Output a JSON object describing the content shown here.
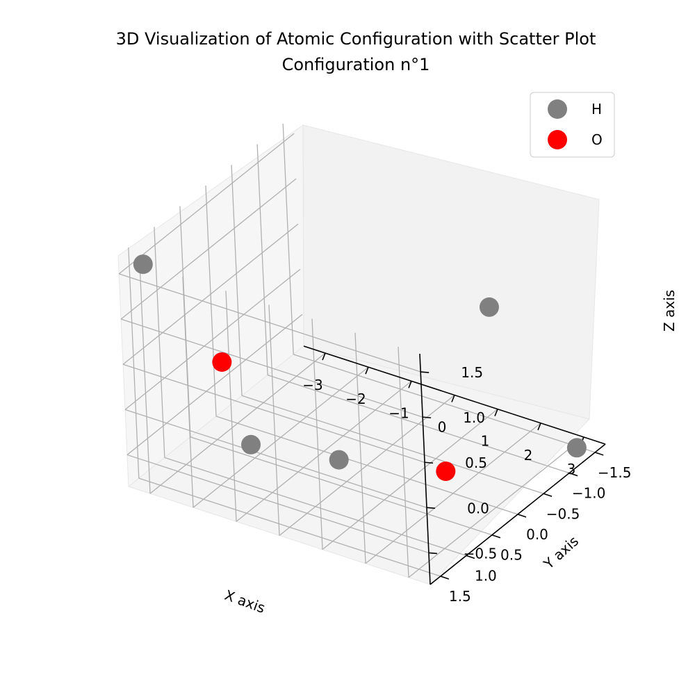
{
  "chart_data": {
    "type": "scatter",
    "title": "3D Visualization of Atomic Configuration with Scatter Plot",
    "subtitle": "Configuration n°1",
    "xlabel": "X axis",
    "ylabel": "Y axis",
    "zlabel": "Z axis",
    "xlim": [
      -3.5,
      3.5
    ],
    "ylim": [
      -1.7,
      1.7
    ],
    "zlim": [
      -0.85,
      1.7
    ],
    "xticks": [
      "−3",
      "−2",
      "−1",
      "0",
      "1",
      "2",
      "3"
    ],
    "yticks": [
      "−1.5",
      "−1.0",
      "−0.5",
      "0.0",
      "0.5",
      "1.0",
      "1.5"
    ],
    "zticks": [
      "−0.5",
      "0.0",
      "0.5",
      "1.0",
      "1.5"
    ],
    "grid": true,
    "legend_position": "top-right",
    "series": [
      {
        "name": "H",
        "color": "#808080",
        "points": [
          {
            "x": -3.3,
            "y": 1.4,
            "z": 1.5
          },
          {
            "x": -0.7,
            "y": 1.6,
            "z": 0.0
          },
          {
            "x": 0.1,
            "y": 0.6,
            "z": -0.5
          },
          {
            "x": 3.3,
            "y": 0.2,
            "z": 1.5
          },
          {
            "x": 3.2,
            "y": -1.4,
            "z": -0.8
          }
        ]
      },
      {
        "name": "O",
        "color": "#ff0000",
        "points": [
          {
            "x": -2.3,
            "y": 0.8,
            "z": 0.3
          },
          {
            "x": 2.1,
            "y": 0.2,
            "z": -0.5
          }
        ]
      }
    ]
  }
}
